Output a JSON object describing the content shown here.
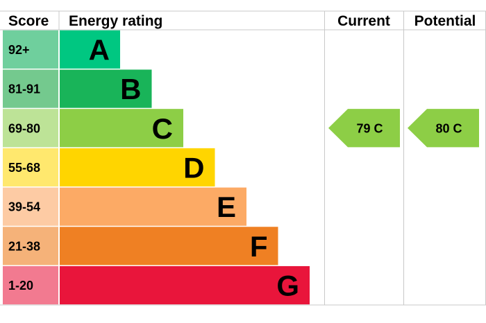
{
  "headers": {
    "score": "Score",
    "rating": "Energy rating",
    "current": "Current",
    "potential": "Potential"
  },
  "chart_data": {
    "type": "bar",
    "bands": [
      {
        "score": "92+",
        "letter": "A",
        "band_color": "#00c781",
        "score_color": "#6fcf9d"
      },
      {
        "score": "81-91",
        "letter": "B",
        "band_color": "#19b459",
        "score_color": "#74c98e"
      },
      {
        "score": "69-80",
        "letter": "C",
        "band_color": "#8dce46",
        "score_color": "#bde397"
      },
      {
        "score": "55-68",
        "letter": "D",
        "band_color": "#ffd500",
        "score_color": "#ffe86e"
      },
      {
        "score": "39-54",
        "letter": "E",
        "band_color": "#fcaa65",
        "score_color": "#fdcba4"
      },
      {
        "score": "21-38",
        "letter": "F",
        "band_color": "#ef8023",
        "score_color": "#f5b279"
      },
      {
        "score": "1-20",
        "letter": "G",
        "band_color": "#e9153b",
        "score_color": "#f27a90"
      }
    ],
    "current": {
      "value": 79,
      "letter": "C",
      "label": "79  C",
      "color": "#8dce46"
    },
    "potential": {
      "value": 80,
      "letter": "C",
      "label": "80  C",
      "color": "#8dce46"
    }
  }
}
